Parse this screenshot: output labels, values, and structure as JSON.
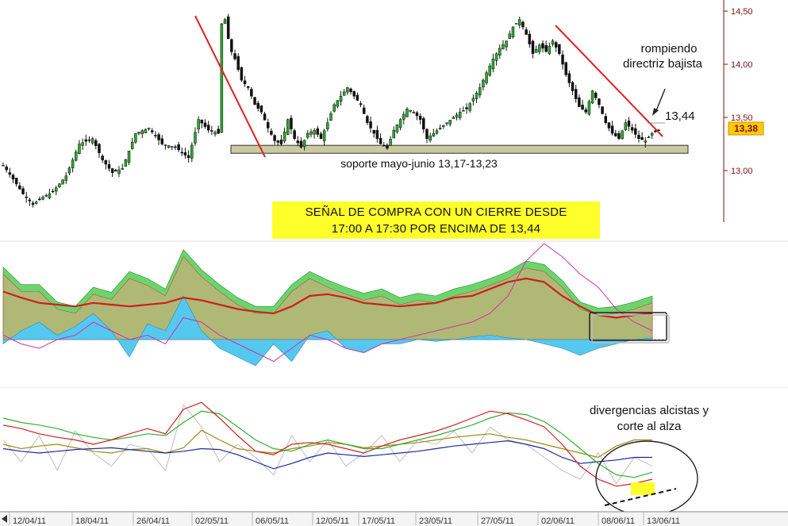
{
  "chart_data": [
    {
      "type": "candlestick",
      "panel": "price",
      "y_axis_ticks": [
        "14,50",
        "14,00",
        "13,50",
        "13,00"
      ],
      "ylim": [
        12.55,
        14.6
      ],
      "x_tick_labels": [
        "12/04/11",
        "18/04/11",
        "26/04/11",
        "02/05/11",
        "06/05/11",
        "12/05/11",
        "17/05/11",
        "23/05/11",
        "27/05/11",
        "02/06/11",
        "08/06/11",
        "13/06/11"
      ],
      "close_path": [
        [
          0,
          13.05
        ],
        [
          6,
          12.92
        ],
        [
          12,
          12.78
        ],
        [
          18,
          12.68
        ],
        [
          24,
          12.75
        ],
        [
          30,
          12.8
        ],
        [
          38,
          12.95
        ],
        [
          46,
          13.25
        ],
        [
          54,
          13.3
        ],
        [
          60,
          13.1
        ],
        [
          66,
          12.98
        ],
        [
          72,
          13.02
        ],
        [
          80,
          13.35
        ],
        [
          88,
          13.4
        ],
        [
          96,
          13.25
        ],
        [
          104,
          13.22
        ],
        [
          112,
          13.12
        ],
        [
          118,
          13.48
        ],
        [
          124,
          13.38
        ],
        [
          130,
          13.35
        ],
        [
          132,
          14.38
        ],
        [
          134,
          14.42
        ],
        [
          137,
          14.15
        ],
        [
          140,
          14.05
        ],
        [
          144,
          13.85
        ],
        [
          148,
          13.78
        ],
        [
          152,
          13.62
        ],
        [
          156,
          13.55
        ],
        [
          160,
          13.4
        ],
        [
          164,
          13.28
        ],
        [
          168,
          13.25
        ],
        [
          172,
          13.48
        ],
        [
          176,
          13.3
        ],
        [
          180,
          13.22
        ],
        [
          184,
          13.35
        ],
        [
          188,
          13.38
        ],
        [
          192,
          13.3
        ],
        [
          196,
          13.45
        ],
        [
          200,
          13.62
        ],
        [
          204,
          13.7
        ],
        [
          208,
          13.78
        ],
        [
          212,
          13.7
        ],
        [
          216,
          13.62
        ],
        [
          220,
          13.45
        ],
        [
          224,
          13.35
        ],
        [
          228,
          13.25
        ],
        [
          232,
          13.21
        ],
        [
          236,
          13.38
        ],
        [
          240,
          13.48
        ],
        [
          244,
          13.58
        ],
        [
          248,
          13.55
        ],
        [
          252,
          13.48
        ],
        [
          256,
          13.3
        ],
        [
          260,
          13.35
        ],
        [
          264,
          13.4
        ],
        [
          268,
          13.45
        ],
        [
          272,
          13.5
        ],
        [
          276,
          13.55
        ],
        [
          280,
          13.58
        ],
        [
          284,
          13.68
        ],
        [
          288,
          13.78
        ],
        [
          292,
          13.92
        ],
        [
          296,
          14.05
        ],
        [
          300,
          14.15
        ],
        [
          304,
          14.22
        ],
        [
          308,
          14.35
        ],
        [
          312,
          14.42
        ],
        [
          316,
          14.28
        ],
        [
          320,
          14.1
        ],
        [
          324,
          14.18
        ],
        [
          328,
          14.12
        ],
        [
          332,
          14.22
        ],
        [
          336,
          14.1
        ],
        [
          340,
          13.9
        ],
        [
          344,
          13.75
        ],
        [
          348,
          13.6
        ],
        [
          352,
          13.55
        ],
        [
          356,
          13.75
        ],
        [
          360,
          13.62
        ],
        [
          364,
          13.45
        ],
        [
          368,
          13.35
        ],
        [
          372,
          13.3
        ],
        [
          376,
          13.45
        ],
        [
          380,
          13.38
        ],
        [
          384,
          13.3
        ],
        [
          388,
          13.28
        ],
        [
          392,
          13.35
        ],
        [
          396,
          13.38
        ]
      ],
      "current_price_label": "13,38",
      "annotations": {
        "breaking_text_line1": "rompiendo",
        "breaking_text_line2": "directriz bajista",
        "level_label": "13,44",
        "support_label": "soporte mayo-junio 13,17-13,23",
        "support_range": [
          13.17,
          13.23
        ],
        "signal_line1": "SEÑAL DE COMPRA CON UN CIERRE DESDE",
        "signal_line2": "17:00 A 17:30 POR ENCIMA DE 13,44"
      },
      "colors": {
        "trendline": "#e02020",
        "support_band": "#c9caa0",
        "signal_box": "#ffff2a",
        "price_axis": "#7a1010",
        "current_price_box": "#ffcc00"
      }
    },
    {
      "type": "area",
      "panel": "indicator-1",
      "series": [
        {
          "name": "",
          "color": "#e8a07c",
          "values": [
            0.75,
            0.55,
            0.55,
            0.35,
            0.3,
            0.52,
            0.46,
            0.7,
            0.62,
            0.5,
            0.95,
            0.72,
            0.55,
            0.4,
            0.3,
            0.3,
            0.55,
            0.7,
            0.6,
            0.52,
            0.45,
            0.5,
            0.4,
            0.45,
            0.42,
            0.5,
            0.55,
            0.62,
            0.7,
            0.82,
            0.78,
            0.6,
            0.35,
            0.28,
            0.3,
            0.35,
            0.42
          ]
        },
        {
          "name": "",
          "color": "#55c8f0",
          "values": [
            -0.05,
            0.1,
            0.2,
            0.05,
            0.15,
            0.3,
            0.1,
            -0.2,
            0.18,
            0.1,
            0.5,
            0.1,
            -0.1,
            -0.2,
            -0.3,
            -0.05,
            -0.25,
            0.05,
            0.1,
            -0.1,
            -0.15,
            -0.05,
            -0.05,
            0.0,
            -0.02,
            0.0,
            0.03,
            0.05,
            0.02,
            0.0,
            -0.05,
            -0.1,
            -0.18,
            -0.1,
            -0.05,
            0.0,
            0.02
          ]
        },
        {
          "name": "",
          "color": "#cc2020",
          "values": [
            0.55,
            0.48,
            0.42,
            0.4,
            0.38,
            0.42,
            0.4,
            0.38,
            0.4,
            0.42,
            0.48,
            0.45,
            0.4,
            0.35,
            0.32,
            0.3,
            0.38,
            0.5,
            0.52,
            0.48,
            0.42,
            0.4,
            0.38,
            0.4,
            0.42,
            0.48,
            0.5,
            0.58,
            0.66,
            0.7,
            0.66,
            0.5,
            0.38,
            0.28,
            0.25,
            0.28,
            0.3
          ]
        },
        {
          "name": "",
          "color": "#d030b0",
          "values": [
            0.05,
            -0.05,
            -0.1,
            0.0,
            0.05,
            0.2,
            0.1,
            0.0,
            0.05,
            -0.05,
            0.25,
            0.2,
            0.05,
            -0.05,
            -0.15,
            -0.25,
            -0.1,
            0.05,
            0.0,
            -0.1,
            -0.15,
            -0.05,
            0.0,
            0.05,
            0.1,
            0.15,
            0.2,
            0.3,
            0.5,
            0.9,
            1.1,
            0.95,
            0.75,
            0.6,
            0.35,
            0.2,
            0.1
          ]
        }
      ]
    },
    {
      "type": "line",
      "panel": "indicator-2",
      "series": [
        {
          "name": "",
          "color": "#d02020",
          "values": [
            0.72,
            0.68,
            0.62,
            0.58,
            0.55,
            0.5,
            0.55,
            0.62,
            0.68,
            0.62,
            0.9,
            0.98,
            0.8,
            0.6,
            0.42,
            0.38,
            0.5,
            0.52,
            0.5,
            0.45,
            0.4,
            0.48,
            0.55,
            0.6,
            0.65,
            0.72,
            0.8,
            0.88,
            0.85,
            0.78,
            0.7,
            0.5,
            0.25,
            0.1,
            0.02,
            0.05,
            0.1
          ]
        },
        {
          "name": "",
          "color": "#30b030",
          "values": [
            0.8,
            0.75,
            0.72,
            0.68,
            0.62,
            0.58,
            0.55,
            0.58,
            0.62,
            0.6,
            0.75,
            0.88,
            0.85,
            0.7,
            0.55,
            0.45,
            0.42,
            0.5,
            0.55,
            0.5,
            0.45,
            0.45,
            0.5,
            0.55,
            0.6,
            0.66,
            0.72,
            0.8,
            0.86,
            0.84,
            0.76,
            0.62,
            0.45,
            0.28,
            0.15,
            0.12,
            0.18
          ]
        },
        {
          "name": "",
          "color": "#1a2a9a",
          "values": [
            0.45,
            0.42,
            0.4,
            0.42,
            0.44,
            0.45,
            0.46,
            0.44,
            0.42,
            0.4,
            0.42,
            0.45,
            0.44,
            0.38,
            0.3,
            0.22,
            0.28,
            0.35,
            0.4,
            0.38,
            0.36,
            0.38,
            0.4,
            0.42,
            0.45,
            0.48,
            0.5,
            0.52,
            0.54,
            0.5,
            0.45,
            0.35,
            0.28,
            0.3,
            0.32,
            0.35,
            0.35
          ]
        },
        {
          "name": "",
          "color": "#a08a10",
          "values": [
            0.5,
            0.45,
            0.48,
            0.5,
            0.46,
            0.42,
            0.4,
            0.44,
            0.45,
            0.4,
            0.46,
            0.66,
            0.55,
            0.45,
            0.42,
            0.4,
            0.45,
            0.48,
            0.52,
            0.5,
            0.46,
            0.48,
            0.5,
            0.52,
            0.55,
            0.58,
            0.6,
            0.62,
            0.58,
            0.55,
            0.5,
            0.45,
            0.4,
            0.35,
            0.48,
            0.55,
            0.55
          ]
        },
        {
          "name": "",
          "color": "#b8b8b8",
          "values": [
            0.55,
            0.3,
            0.6,
            0.2,
            0.65,
            0.4,
            0.25,
            0.5,
            0.45,
            0.2,
            0.95,
            0.7,
            0.3,
            0.5,
            0.35,
            0.15,
            0.6,
            0.3,
            0.55,
            0.25,
            0.4,
            0.6,
            0.3,
            0.55,
            0.5,
            0.65,
            0.4,
            0.7,
            0.55,
            0.5,
            0.35,
            0.2,
            0.1,
            0.4,
            0.05,
            0.35,
            0.25
          ]
        }
      ],
      "annotations": {
        "divergence_line1": "divergencias alcistas y",
        "divergence_line2": "corte al alza"
      }
    }
  ]
}
